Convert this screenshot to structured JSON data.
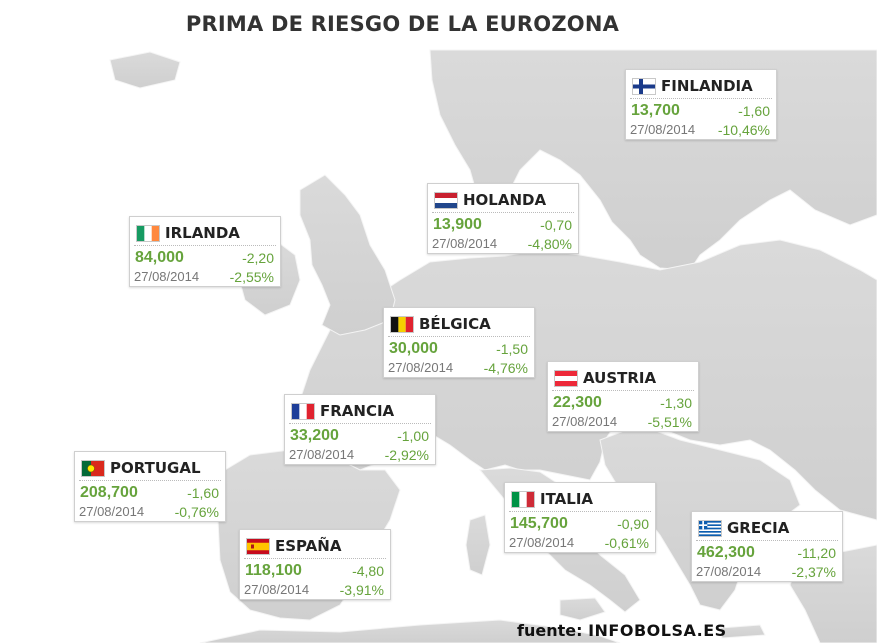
{
  "title": "PRIMA DE RIESGO DE LA EUROZONA",
  "source": {
    "label": "fuente:",
    "value": "INFOBOLSA.ES"
  },
  "colors": {
    "land": "#d6d6d6",
    "sea": "#ffffff",
    "positive": "#66a33c"
  },
  "countries": [
    {
      "id": "finlandia",
      "name": "FINLANDIA",
      "flag": "finland-flag",
      "value": "13,700",
      "change": "-1,60",
      "date": "27/08/2014",
      "pct": "-10,46%"
    },
    {
      "id": "holanda",
      "name": "HOLANDA",
      "flag": "netherlands-flag",
      "value": "13,900",
      "change": "-0,70",
      "date": "27/08/2014",
      "pct": "-4,80%"
    },
    {
      "id": "irlanda",
      "name": "IRLANDA",
      "flag": "ireland-flag",
      "value": "84,000",
      "change": "-2,20",
      "date": "27/08/2014",
      "pct": "-2,55%"
    },
    {
      "id": "belgica",
      "name": "BÉLGICA",
      "flag": "belgium-flag",
      "value": "30,000",
      "change": "-1,50",
      "date": "27/08/2014",
      "pct": "-4,76%"
    },
    {
      "id": "austria",
      "name": "AUSTRIA",
      "flag": "austria-flag",
      "value": "22,300",
      "change": "-1,30",
      "date": "27/08/2014",
      "pct": "-5,51%"
    },
    {
      "id": "francia",
      "name": "FRANCIA",
      "flag": "france-flag",
      "value": "33,200",
      "change": "-1,00",
      "date": "27/08/2014",
      "pct": "-2,92%"
    },
    {
      "id": "portugal",
      "name": "PORTUGAL",
      "flag": "portugal-flag",
      "value": "208,700",
      "change": "-1,60",
      "date": "27/08/2014",
      "pct": "-0,76%"
    },
    {
      "id": "italia",
      "name": "ITALIA",
      "flag": "italy-flag",
      "value": "145,700",
      "change": "-0,90",
      "date": "27/08/2014",
      "pct": "-0,61%"
    },
    {
      "id": "grecia",
      "name": "GRECIA",
      "flag": "greece-flag",
      "value": "462,300",
      "change": "-11,20",
      "date": "27/08/2014",
      "pct": "-2,37%"
    },
    {
      "id": "espana",
      "name": "ESPAÑA",
      "flag": "spain-flag",
      "value": "118,100",
      "change": "-4,80",
      "date": "27/08/2014",
      "pct": "-3,91%"
    }
  ]
}
